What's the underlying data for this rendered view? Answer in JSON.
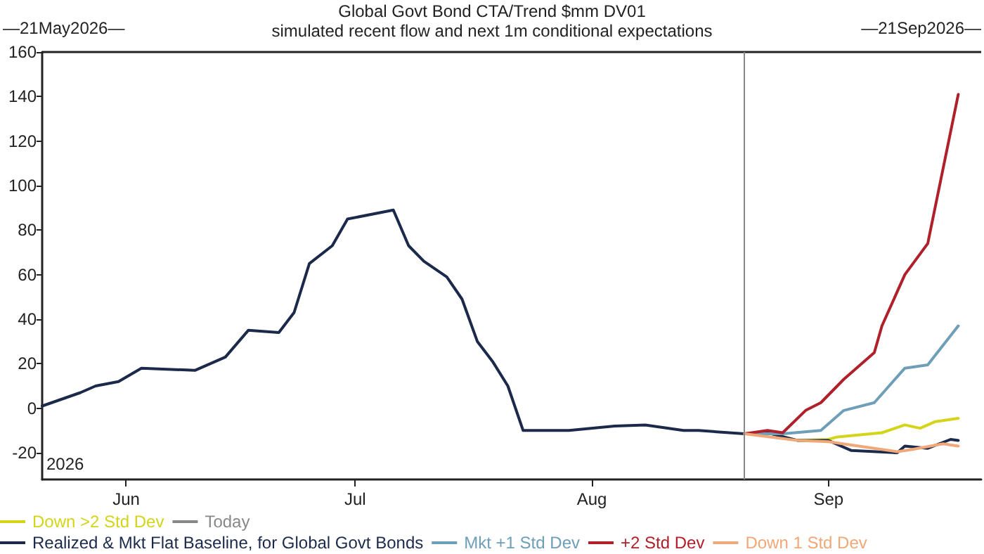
{
  "chart_data": {
    "type": "line",
    "title": "Global Govt Bond CTA/Trend $mm DV01",
    "subtitle": "simulated recent flow and next 1m conditional expectations",
    "annotations": [
      "—21May2026—",
      "—21Sep2026—",
      "2026"
    ],
    "xlim": [
      "2026-05-21",
      "2026-09-21"
    ],
    "xticks": [
      {
        "value": "2026-06-01",
        "label": "Jun"
      },
      {
        "value": "2026-07-01",
        "label": "Jul"
      },
      {
        "value": "2026-08-01",
        "label": "Aug"
      },
      {
        "value": "2026-09-01",
        "label": "Sep"
      }
    ],
    "ylim": [
      -32,
      160
    ],
    "yticks": [
      -20,
      0,
      20,
      40,
      60,
      80,
      100,
      120,
      140,
      160
    ],
    "grid": false,
    "legend": "bottom",
    "marker": "none",
    "line_style": "solid",
    "ref_lines": [
      {
        "axis": "x",
        "value": "2026-08-21",
        "label": "Today",
        "color": "#888888"
      }
    ],
    "series": [
      {
        "name": "Down >2 Std Dev",
        "color": "#d4d41a",
        "x": [
          "2026-08-21",
          "2026-08-24",
          "2026-08-28",
          "2026-09-01",
          "2026-09-02",
          "2026-09-08",
          "2026-09-11",
          "2026-09-13",
          "2026-09-15",
          "2026-09-18"
        ],
        "values": [
          -11.5,
          -11,
          -14.5,
          -14,
          -13,
          -11,
          -7.5,
          -9,
          -6,
          -4.5
        ]
      },
      {
        "name": "Realized & Mkt Flat Baseline, for Global Govt Bonds",
        "color": "#1b2a4a",
        "x": [
          "2026-05-21",
          "2026-05-26",
          "2026-05-28",
          "2026-05-31",
          "2026-06-03",
          "2026-06-10",
          "2026-06-14",
          "2026-06-17",
          "2026-06-21",
          "2026-06-23",
          "2026-06-25",
          "2026-06-28",
          "2026-06-30",
          "2026-07-06",
          "2026-07-08",
          "2026-07-10",
          "2026-07-13",
          "2026-07-15",
          "2026-07-17",
          "2026-07-19",
          "2026-07-21",
          "2026-07-23",
          "2026-07-29",
          "2026-08-04",
          "2026-08-08",
          "2026-08-13",
          "2026-08-15",
          "2026-08-21",
          "2026-08-24",
          "2026-08-28",
          "2026-09-01",
          "2026-09-04",
          "2026-09-10",
          "2026-09-11",
          "2026-09-14",
          "2026-09-17",
          "2026-09-18"
        ],
        "values": [
          1,
          7,
          10,
          12,
          18,
          17,
          23,
          35,
          34,
          43,
          65,
          73,
          85,
          89,
          73,
          66,
          59,
          49,
          30,
          21,
          10,
          -10,
          -10,
          -8,
          -7.5,
          -10,
          -10,
          -11.5,
          -11,
          -14.5,
          -14.5,
          -19,
          -20,
          -17,
          -18,
          -14,
          -14.5
        ]
      },
      {
        "name": "Mkt +1 Std Dev",
        "color": "#6f9fb8",
        "x": [
          "2026-08-21",
          "2026-08-26",
          "2026-08-31",
          "2026-09-03",
          "2026-09-07",
          "2026-09-11",
          "2026-09-14",
          "2026-09-18"
        ],
        "values": [
          -11.5,
          -11.5,
          -10,
          -1,
          2.5,
          18,
          19.5,
          37
        ]
      },
      {
        "name": "+2 Std Dev",
        "color": "#b0202a",
        "x": [
          "2026-08-21",
          "2026-08-24",
          "2026-08-26",
          "2026-08-29",
          "2026-08-31",
          "2026-09-03",
          "2026-09-07",
          "2026-09-08",
          "2026-09-11",
          "2026-09-14",
          "2026-09-18"
        ],
        "values": [
          -11.5,
          -10,
          -11,
          -1,
          2.5,
          13,
          25,
          37,
          60,
          74,
          141
        ]
      },
      {
        "name": "Down 1 Std Dev",
        "color": "#f0a878",
        "x": [
          "2026-08-21",
          "2026-08-28",
          "2026-09-01",
          "2026-09-04",
          "2026-09-10",
          "2026-09-12",
          "2026-09-16",
          "2026-09-18"
        ],
        "values": [
          -11.5,
          -14.5,
          -15,
          -16.5,
          -19.5,
          -18.5,
          -16,
          -17
        ]
      }
    ]
  }
}
